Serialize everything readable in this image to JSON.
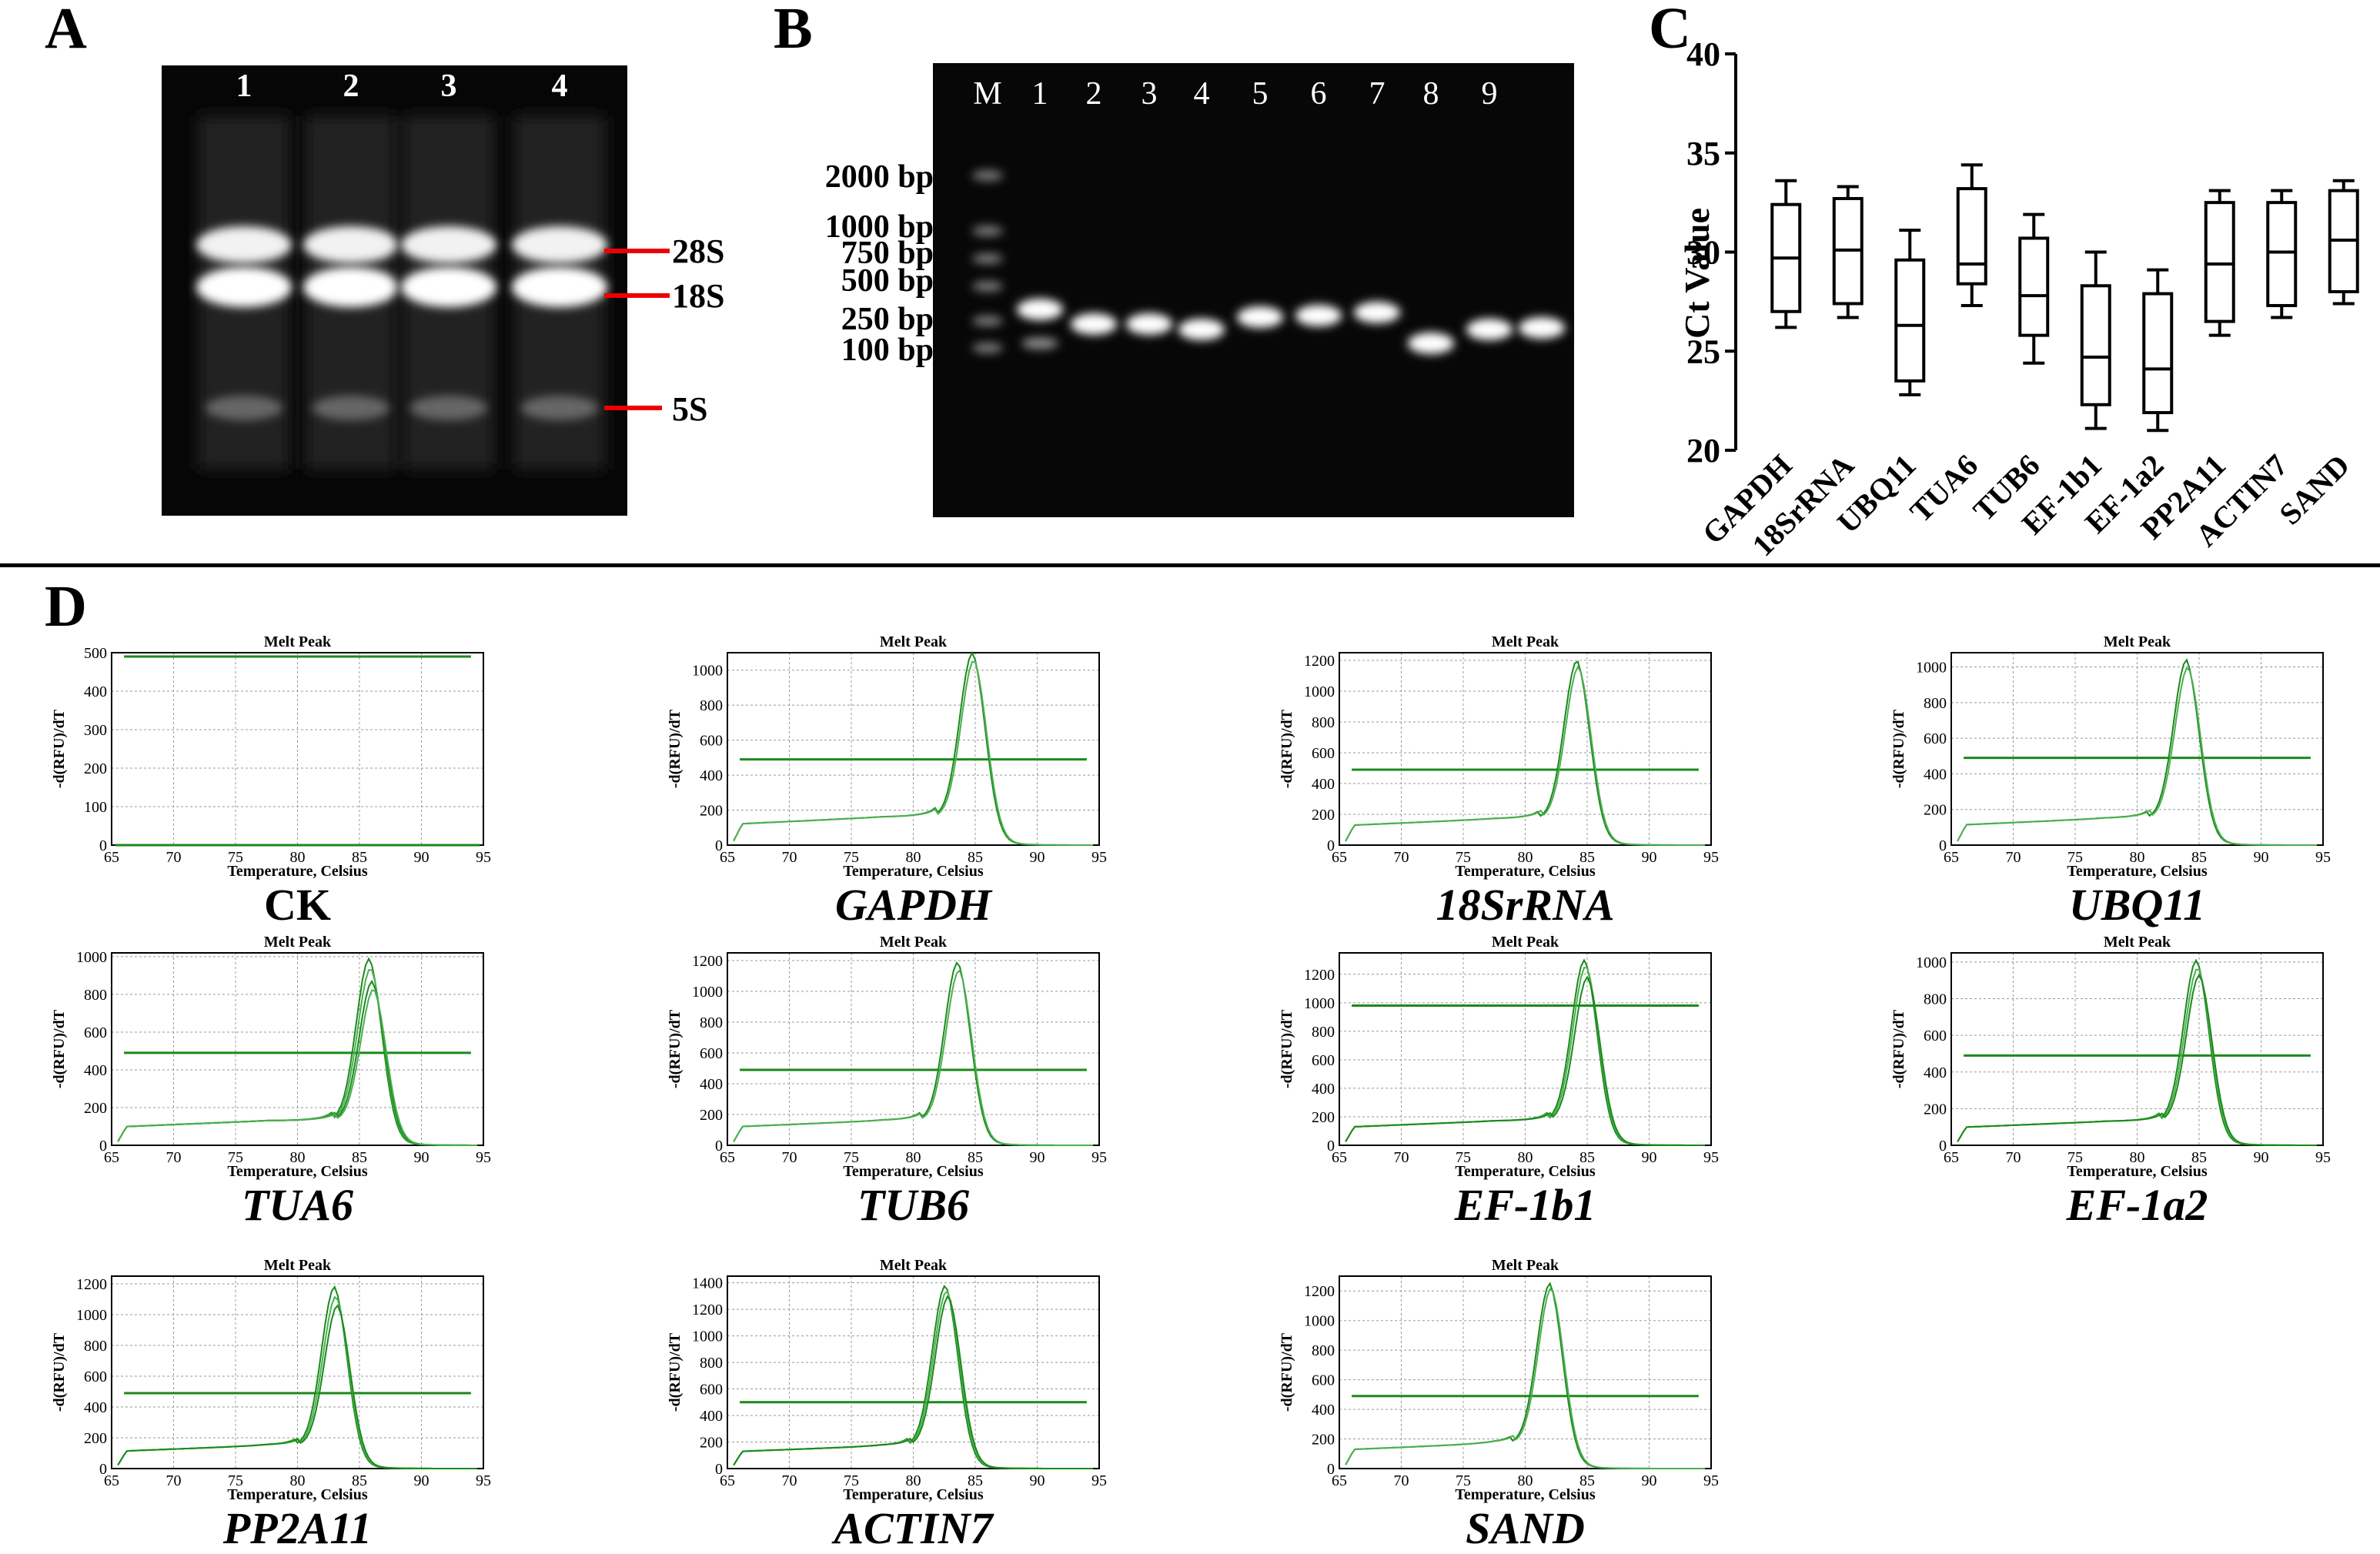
{
  "panel_a": {
    "letter": "A",
    "lanes": [
      "1",
      "2",
      "3",
      "4"
    ],
    "bands": [
      "28S",
      "18S",
      "5S"
    ]
  },
  "panel_b": {
    "letter": "B",
    "lanes": [
      "M",
      "1",
      "2",
      "3",
      "4",
      "5",
      "6",
      "7",
      "8",
      "9"
    ],
    "markers": [
      "2000 bp",
      "1000 bp",
      "750 bp",
      "500 bp",
      "250 bp",
      "100 bp"
    ]
  },
  "panel_c": {
    "letter": "C",
    "chart_data": {
      "type": "box",
      "ylabel": "Ct Value",
      "ylim": [
        20,
        40
      ],
      "yticks": [
        "20",
        "25",
        "30",
        "35",
        "40"
      ],
      "categories": [
        "GAPDH",
        "18SrRNA",
        "UBQ11",
        "TUA6",
        "TUB6",
        "EF-1b1",
        "EF-1a2",
        "PP2A11",
        "ACTIN7",
        "SAND"
      ],
      "boxes": [
        {
          "min": 26.2,
          "q1": 27.0,
          "median": 29.7,
          "q3": 32.4,
          "max": 33.6
        },
        {
          "min": 26.7,
          "q1": 27.4,
          "median": 30.1,
          "q3": 32.7,
          "max": 33.3
        },
        {
          "min": 22.8,
          "q1": 23.5,
          "median": 26.3,
          "q3": 29.6,
          "max": 31.1
        },
        {
          "min": 27.3,
          "q1": 28.4,
          "median": 29.4,
          "q3": 33.2,
          "max": 34.4
        },
        {
          "min": 24.4,
          "q1": 25.8,
          "median": 27.8,
          "q3": 30.7,
          "max": 31.9
        },
        {
          "min": 21.1,
          "q1": 22.3,
          "median": 24.7,
          "q3": 28.3,
          "max": 30.0
        },
        {
          "min": 21.0,
          "q1": 21.9,
          "median": 24.1,
          "q3": 27.9,
          "max": 29.1
        },
        {
          "min": 25.8,
          "q1": 26.5,
          "median": 29.4,
          "q3": 32.5,
          "max": 33.1
        },
        {
          "min": 26.7,
          "q1": 27.3,
          "median": 30.0,
          "q3": 32.5,
          "max": 33.1
        },
        {
          "min": 27.4,
          "q1": 28.0,
          "median": 30.6,
          "q3": 33.1,
          "max": 33.6
        }
      ]
    }
  },
  "panel_d": {
    "letter": "D",
    "plot_title": "Melt Peak",
    "xlabel": "Temperature, Celsius",
    "ylabel": "-d(RFU)/dT",
    "xticks": [
      "65",
      "70",
      "75",
      "80",
      "85",
      "90",
      "95"
    ],
    "chart_data": [
      {
        "name": "CK",
        "italic": false,
        "ymax": 500,
        "yticks": [
          0,
          100,
          200,
          300,
          400,
          500
        ],
        "threshold": 490,
        "peak_temp": null,
        "peak_heights": [],
        "baseline": 0
      },
      {
        "name": "GAPDH",
        "italic": true,
        "ymax": 1100,
        "yticks": [
          0,
          200,
          400,
          600,
          800,
          1000
        ],
        "threshold": 490,
        "peak_temp": 84.8,
        "peak_heights": [
          1100,
          1060
        ],
        "baseline": 160
      },
      {
        "name": "18SrRNA",
        "italic": true,
        "ymax": 1250,
        "yticks": [
          0,
          200,
          400,
          600,
          800,
          1000,
          1200
        ],
        "threshold": 490,
        "peak_temp": 84.2,
        "peak_heights": [
          1200,
          1160
        ],
        "baseline": 170
      },
      {
        "name": "UBQ11",
        "italic": true,
        "ymax": 1080,
        "yticks": [
          0,
          200,
          400,
          600,
          800,
          1000
        ],
        "threshold": 490,
        "peak_temp": 84.0,
        "peak_heights": [
          1040,
          1000
        ],
        "baseline": 150
      },
      {
        "name": "TUA6",
        "italic": true,
        "ymax": 1020,
        "yticks": [
          0,
          200,
          400,
          600,
          800,
          1000
        ],
        "threshold": 490,
        "peak_temp": 85.8,
        "peak_heights": [
          990,
          940,
          870,
          830
        ],
        "baseline": 130
      },
      {
        "name": "TUB6",
        "italic": true,
        "ymax": 1250,
        "yticks": [
          0,
          200,
          400,
          600,
          800,
          1000,
          1200
        ],
        "threshold": 490,
        "peak_temp": 83.6,
        "peak_heights": [
          1190,
          1140
        ],
        "baseline": 160
      },
      {
        "name": "EF-1b1",
        "italic": true,
        "ymax": 1350,
        "yticks": [
          0,
          200,
          400,
          600,
          800,
          1000,
          1200
        ],
        "threshold": 980,
        "peak_temp": 84.8,
        "peak_heights": [
          1300,
          1260,
          1180
        ],
        "baseline": 170
      },
      {
        "name": "EF-1a2",
        "italic": true,
        "ymax": 1050,
        "yticks": [
          0,
          200,
          400,
          600,
          800,
          1000
        ],
        "threshold": 490,
        "peak_temp": 84.8,
        "peak_heights": [
          1010,
          970,
          930
        ],
        "baseline": 130
      },
      {
        "name": "PP2A11",
        "italic": true,
        "ymax": 1250,
        "yticks": [
          0,
          200,
          400,
          600,
          800,
          1000,
          1200
        ],
        "threshold": 490,
        "peak_temp": 83.0,
        "peak_heights": [
          1180,
          1120,
          1060
        ],
        "baseline": 150
      },
      {
        "name": "ACTIN7",
        "italic": true,
        "ymax": 1450,
        "yticks": [
          0,
          200,
          400,
          600,
          800,
          1000,
          1200,
          1400
        ],
        "threshold": 500,
        "peak_temp": 82.6,
        "peak_heights": [
          1380,
          1340,
          1300
        ],
        "baseline": 170
      },
      {
        "name": "SAND",
        "italic": true,
        "ymax": 1300,
        "yticks": [
          0,
          200,
          400,
          600,
          800,
          1000,
          1200
        ],
        "threshold": 490,
        "peak_temp": 82.0,
        "peak_heights": [
          1250,
          1220
        ],
        "baseline": 170
      }
    ]
  }
}
